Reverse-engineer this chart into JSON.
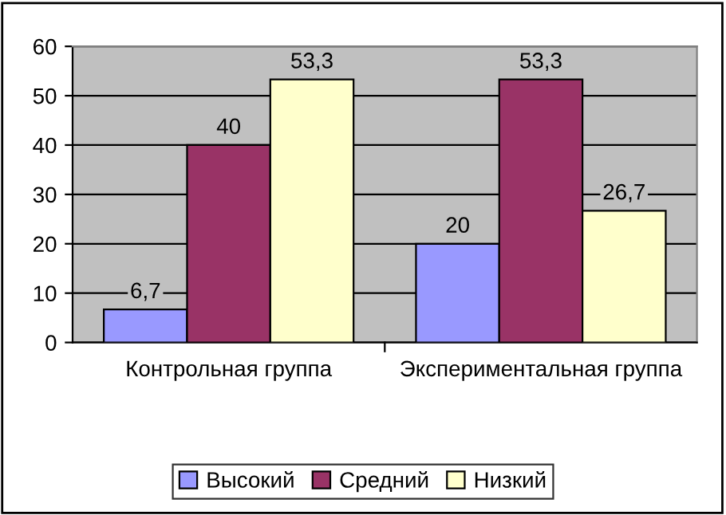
{
  "chart_data": {
    "type": "bar",
    "categories": [
      "Контрольная группа",
      "Экспериментальная группа"
    ],
    "series": [
      {
        "name": "Высокий",
        "color": "#9999ff",
        "values": [
          6.7,
          20
        ],
        "value_labels": [
          "6,7",
          "20"
        ]
      },
      {
        "name": "Средний",
        "color": "#993366",
        "values": [
          40,
          53.3
        ],
        "value_labels": [
          "40",
          "53,3"
        ]
      },
      {
        "name": "Низкий",
        "color": "#ffffcc",
        "values": [
          53.3,
          26.7
        ],
        "value_labels": [
          "53,3",
          "26,7"
        ]
      }
    ],
    "ylim": [
      0,
      60
    ],
    "yticks": [
      0,
      10,
      20,
      30,
      40,
      50,
      60
    ],
    "grid": "y",
    "legend": "bottom"
  }
}
